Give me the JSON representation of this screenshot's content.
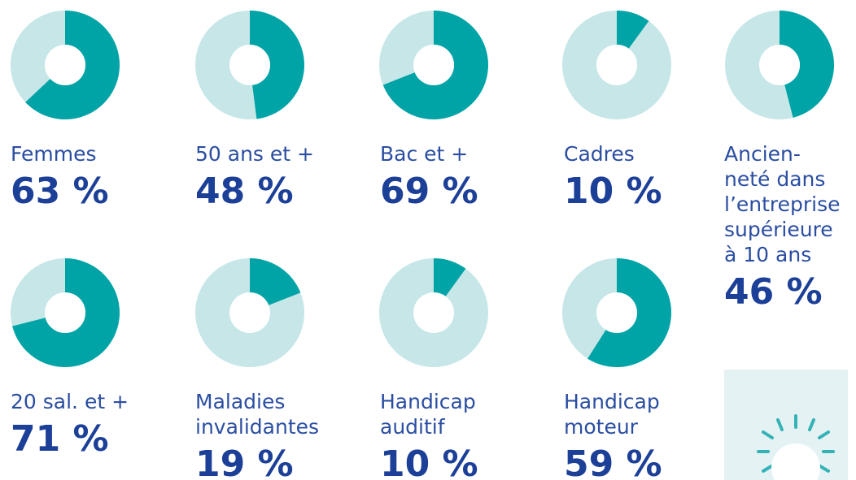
{
  "chart_data": [
    {
      "type": "pie",
      "title": [
        "Femmes"
      ],
      "values": [
        63
      ],
      "value_labels": [
        "63 %"
      ],
      "color": "#00a3a6"
    },
    {
      "type": "pie",
      "title": [
        "50 ans et +"
      ],
      "values": [
        48
      ],
      "value_labels": [
        "48 %"
      ],
      "color": "#00a3a6"
    },
    {
      "type": "pie",
      "title": [
        "Bac et +"
      ],
      "values": [
        69
      ],
      "value_labels": [
        "69 %"
      ],
      "color": "#00a3a6"
    },
    {
      "type": "pie",
      "title": [
        "Cadres"
      ],
      "values": [
        10
      ],
      "value_labels": [
        "10 %"
      ],
      "color": "#00a3a6"
    },
    {
      "type": "pie",
      "title": [
        "Ancien-",
        "neté dans",
        "l’entreprise",
        "supérieure",
        "à 10 ans"
      ],
      "values": [
        46
      ],
      "value_labels": [
        "46 %"
      ],
      "color": "#00a3a6"
    },
    {
      "type": "pie",
      "title": [
        "20 sal. et +"
      ],
      "values": [
        71
      ],
      "value_labels": [
        "71 %"
      ],
      "color": "#00a3a6"
    },
    {
      "type": "pie",
      "title": [
        "Maladies",
        "invalidantes"
      ],
      "values": [
        19
      ],
      "value_labels": [
        "19 %"
      ],
      "color": "#00a3a6"
    },
    {
      "type": "pie",
      "title": [
        "Handicap",
        "auditif"
      ],
      "values": [
        10
      ],
      "value_labels": [
        "10 %"
      ],
      "color": "#00a3a6"
    },
    {
      "type": "pie",
      "title": [
        "Handicap",
        "moteur"
      ],
      "values": [
        59
      ],
      "value_labels": [
        "59 %"
      ],
      "color": "#00a3a6"
    }
  ]
}
